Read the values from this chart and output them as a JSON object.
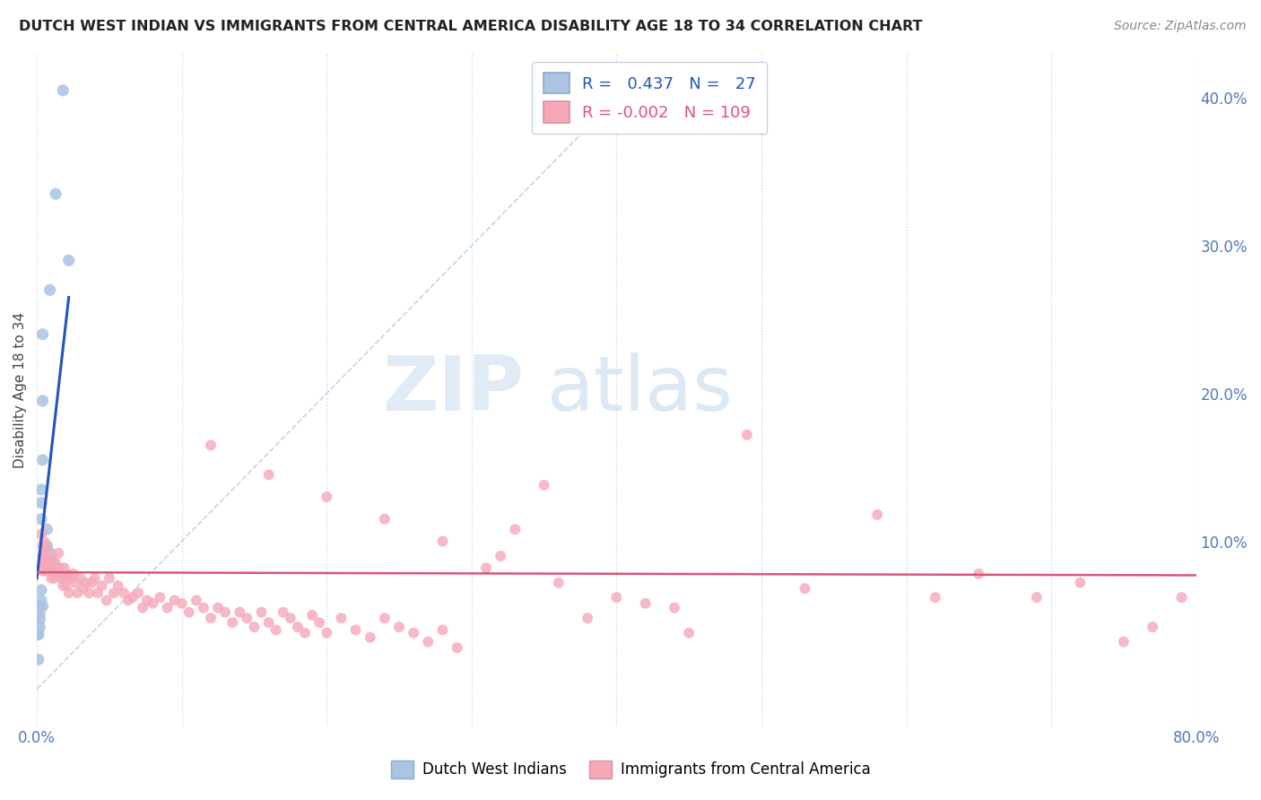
{
  "title": "DUTCH WEST INDIAN VS IMMIGRANTS FROM CENTRAL AMERICA DISABILITY AGE 18 TO 34 CORRELATION CHART",
  "source": "Source: ZipAtlas.com",
  "ylabel": "Disability Age 18 to 34",
  "xlim": [
    0.0,
    0.8
  ],
  "ylim": [
    -0.025,
    0.43
  ],
  "xticks": [
    0.0,
    0.1,
    0.2,
    0.3,
    0.4,
    0.5,
    0.6,
    0.7,
    0.8
  ],
  "xticklabels": [
    "0.0%",
    "",
    "",
    "",
    "",
    "",
    "",
    "",
    "80.0%"
  ],
  "yticks_right": [
    0.0,
    0.1,
    0.2,
    0.3,
    0.4
  ],
  "yticklabels_right": [
    "",
    "10.0%",
    "20.0%",
    "30.0%",
    "40.0%"
  ],
  "blue_R": 0.437,
  "blue_N": 27,
  "pink_R": -0.002,
  "pink_N": 109,
  "blue_color": "#aac4e2",
  "pink_color": "#f5a8b8",
  "blue_line_color": "#2255bb",
  "pink_line_color": "#dd5577",
  "dashed_line_color": "#b0c8e0",
  "watermark_zip": "ZIP",
  "watermark_atlas": "atlas",
  "blue_line_x": [
    0.0,
    0.022
  ],
  "blue_line_y": [
    0.075,
    0.265
  ],
  "pink_line_x": [
    0.0,
    0.8
  ],
  "pink_line_y": [
    0.079,
    0.077
  ],
  "dash_line_x": [
    0.0,
    0.42
  ],
  "dash_line_y": [
    0.0,
    0.42
  ],
  "blue_points_x": [
    0.018,
    0.013,
    0.022,
    0.009,
    0.004,
    0.004,
    0.004,
    0.003,
    0.003,
    0.003,
    0.007,
    0.007,
    0.009,
    0.009,
    0.013,
    0.018,
    0.022,
    0.003,
    0.003,
    0.004,
    0.002,
    0.002,
    0.002,
    0.002,
    0.001,
    0.001,
    0.001
  ],
  "blue_points_y": [
    0.405,
    0.335,
    0.29,
    0.27,
    0.24,
    0.195,
    0.155,
    0.135,
    0.126,
    0.115,
    0.108,
    0.097,
    0.092,
    0.086,
    0.082,
    0.077,
    0.077,
    0.067,
    0.06,
    0.056,
    0.056,
    0.05,
    0.047,
    0.042,
    0.037,
    0.037,
    0.02
  ],
  "pink_points_x": [
    0.003,
    0.004,
    0.004,
    0.004,
    0.004,
    0.005,
    0.005,
    0.005,
    0.006,
    0.007,
    0.007,
    0.008,
    0.009,
    0.01,
    0.01,
    0.011,
    0.012,
    0.012,
    0.013,
    0.014,
    0.015,
    0.016,
    0.017,
    0.018,
    0.019,
    0.02,
    0.021,
    0.022,
    0.023,
    0.025,
    0.027,
    0.028,
    0.03,
    0.032,
    0.034,
    0.036,
    0.038,
    0.04,
    0.042,
    0.045,
    0.048,
    0.05,
    0.053,
    0.056,
    0.06,
    0.063,
    0.066,
    0.07,
    0.073,
    0.076,
    0.08,
    0.085,
    0.09,
    0.095,
    0.1,
    0.105,
    0.11,
    0.115,
    0.12,
    0.125,
    0.13,
    0.135,
    0.14,
    0.145,
    0.15,
    0.155,
    0.16,
    0.165,
    0.17,
    0.175,
    0.18,
    0.185,
    0.19,
    0.195,
    0.2,
    0.21,
    0.22,
    0.23,
    0.24,
    0.25,
    0.26,
    0.27,
    0.28,
    0.29,
    0.31,
    0.33,
    0.35,
    0.38,
    0.42,
    0.45,
    0.49,
    0.53,
    0.58,
    0.62,
    0.65,
    0.69,
    0.72,
    0.75,
    0.77,
    0.79,
    0.12,
    0.16,
    0.2,
    0.24,
    0.28,
    0.32,
    0.36,
    0.4,
    0.44
  ],
  "pink_points_y": [
    0.105,
    0.097,
    0.09,
    0.085,
    0.08,
    0.1,
    0.092,
    0.085,
    0.08,
    0.095,
    0.087,
    0.082,
    0.088,
    0.082,
    0.075,
    0.088,
    0.082,
    0.075,
    0.085,
    0.08,
    0.092,
    0.082,
    0.075,
    0.07,
    0.082,
    0.077,
    0.07,
    0.065,
    0.075,
    0.078,
    0.072,
    0.065,
    0.075,
    0.068,
    0.072,
    0.065,
    0.072,
    0.075,
    0.065,
    0.07,
    0.06,
    0.075,
    0.065,
    0.07,
    0.065,
    0.06,
    0.062,
    0.065,
    0.055,
    0.06,
    0.058,
    0.062,
    0.055,
    0.06,
    0.058,
    0.052,
    0.06,
    0.055,
    0.048,
    0.055,
    0.052,
    0.045,
    0.052,
    0.048,
    0.042,
    0.052,
    0.045,
    0.04,
    0.052,
    0.048,
    0.042,
    0.038,
    0.05,
    0.045,
    0.038,
    0.048,
    0.04,
    0.035,
    0.048,
    0.042,
    0.038,
    0.032,
    0.04,
    0.028,
    0.082,
    0.108,
    0.138,
    0.048,
    0.058,
    0.038,
    0.172,
    0.068,
    0.118,
    0.062,
    0.078,
    0.062,
    0.072,
    0.032,
    0.042,
    0.062,
    0.165,
    0.145,
    0.13,
    0.115,
    0.1,
    0.09,
    0.072,
    0.062,
    0.055
  ]
}
